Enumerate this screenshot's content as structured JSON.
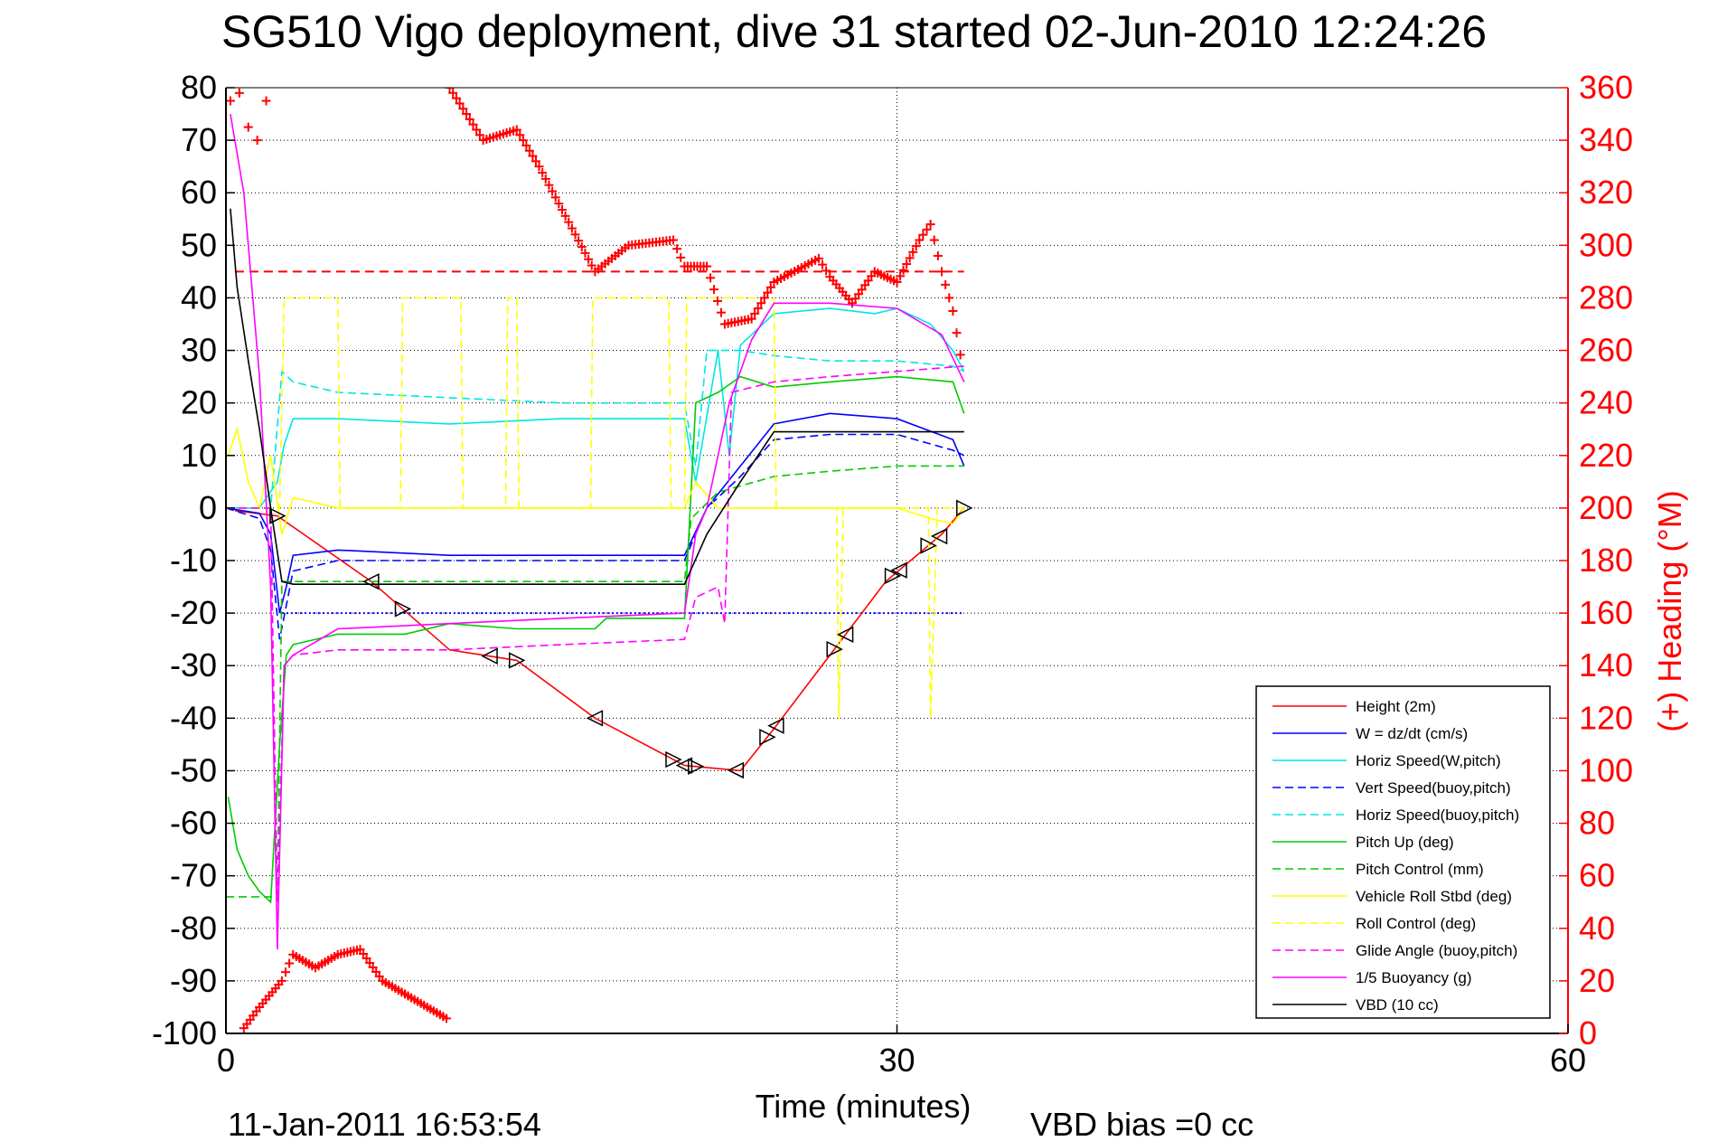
{
  "chart_data": {
    "type": "line",
    "title": "SG510 Vigo deployment, dive 31 started 02-Jun-2010 12:24:26",
    "xlabel": "Time (minutes)",
    "ylabel_right": "(+) Heading (°M)",
    "timestamp": "11-Jan-2011 16:53:54",
    "vbd_bias": "VBD bias =0 cc",
    "xlim": [
      0,
      60
    ],
    "ylim_left": [
      -100,
      80
    ],
    "ylim_right": [
      0,
      360
    ],
    "x_ticks": [
      0,
      30,
      60
    ],
    "y_ticks_left": [
      80,
      70,
      60,
      50,
      40,
      30,
      20,
      10,
      0,
      -10,
      -20,
      -30,
      -40,
      -50,
      -60,
      -70,
      -80,
      -90,
      -100
    ],
    "y_ticks_right": [
      360,
      340,
      320,
      300,
      280,
      260,
      240,
      220,
      200,
      180,
      160,
      140,
      120,
      100,
      80,
      60,
      40,
      20,
      0
    ],
    "grid": true,
    "legend_position": "bottom-right",
    "colors": {
      "red": "#ff0000",
      "blue": "#0000ff",
      "cyan": "#00e5e5",
      "green": "#00cc00",
      "yellow": "#ffff00",
      "magenta": "#ff00ff",
      "black": "#000000"
    },
    "series": [
      {
        "name": "Height (2m)",
        "color": "red",
        "dash": "solid",
        "x": [
          0.4,
          2.3,
          6.5,
          10,
          13,
          16.5,
          20.5,
          23,
          24.5,
          27,
          29.5,
          32,
          33
        ],
        "y": [
          -0.5,
          -1.5,
          -14,
          -27,
          -29,
          -40,
          -49,
          -50,
          -42,
          -28,
          -14,
          -5,
          0
        ]
      },
      {
        "name": "W = dz/dt (cm/s)",
        "color": "blue",
        "dash": "solid",
        "x": [
          0,
          1.5,
          2.0,
          2.4,
          2.7,
          3.0,
          5,
          10,
          15,
          20.5,
          21.5,
          23,
          24.5,
          27,
          30,
          32.5,
          33
        ],
        "y": [
          0,
          -1,
          -5,
          -20,
          -15,
          -9,
          -8,
          -9,
          -9,
          -9,
          0,
          8,
          16,
          18,
          17,
          13,
          8
        ]
      },
      {
        "name": "Horiz Speed(W,pitch)",
        "color": "cyan",
        "dash": "solid",
        "x": [
          0,
          1.5,
          2.3,
          2.6,
          3.0,
          5,
          10,
          15,
          20.5,
          21.0,
          22.0,
          22.5,
          23,
          24.5,
          27,
          29,
          30,
          31.5,
          32.5,
          33
        ],
        "y": [
          0,
          0,
          5,
          12,
          17,
          17,
          16,
          17,
          17,
          5,
          30,
          10,
          31,
          37,
          38,
          37,
          38,
          35,
          30,
          26
        ]
      },
      {
        "name": "Vert Speed(buoy,pitch)",
        "color": "blue",
        "dash": "dashed",
        "x": [
          0,
          1.5,
          2.0,
          2.4,
          3.0,
          5,
          10,
          15,
          20.5,
          21.5,
          23,
          24.5,
          27,
          30,
          32.5,
          33
        ],
        "y": [
          0,
          -2,
          -8,
          -25,
          -12,
          -10,
          -10,
          -10,
          -10,
          0,
          6,
          13,
          14,
          14,
          11,
          10
        ]
      },
      {
        "name": "Horiz Speed(buoy,pitch)",
        "color": "cyan",
        "dash": "dashed",
        "x": [
          0,
          2.0,
          2.5,
          3.0,
          5,
          10,
          15,
          20.5,
          21.0,
          21.5,
          23,
          24.5,
          27,
          30,
          32.5,
          33
        ],
        "y": [
          0,
          0,
          26,
          24,
          22,
          21,
          20,
          20,
          8,
          30,
          30,
          29,
          28,
          28,
          27,
          26
        ]
      },
      {
        "name": "Pitch Up (deg)",
        "color": "green",
        "dash": "solid",
        "x": [
          0.1,
          0.5,
          1.0,
          1.5,
          2.0,
          2.4,
          2.7,
          3.0,
          5,
          8,
          10,
          13,
          16.5,
          17,
          20.5,
          21.0,
          22,
          23,
          24.5,
          27,
          30,
          32.5,
          33
        ],
        "y": [
          -55,
          -65,
          -70,
          -73,
          -75,
          -45,
          -28,
          -26,
          -24,
          -24,
          -22,
          -23,
          -23,
          -21,
          -21,
          20,
          22,
          25,
          23,
          24,
          25,
          24,
          18
        ]
      },
      {
        "name": "Pitch Control (mm)",
        "color": "green",
        "dash": "dashed",
        "x": [
          0,
          2.3,
          2.5,
          20.5,
          20.8,
          22,
          24.5,
          27,
          30,
          33
        ],
        "y": [
          -74,
          -74,
          -14,
          -14,
          -2,
          3,
          6,
          7,
          8,
          8
        ]
      },
      {
        "name": "Vehicle Roll Stbd (deg)",
        "color": "yellow",
        "dash": "solid",
        "x": [
          0.1,
          0.5,
          1.0,
          1.5,
          2.0,
          2.5,
          3.0,
          5,
          10,
          15,
          20.5,
          21.0,
          22,
          24.5,
          27,
          30,
          31.5,
          32.5,
          33
        ],
        "y": [
          10,
          15,
          5,
          0,
          10,
          -5,
          2,
          0,
          0,
          0,
          0,
          5,
          0,
          0,
          0,
          0,
          -2,
          -3,
          0
        ]
      },
      {
        "name": "Roll Control (deg)",
        "color": "yellow",
        "dash": "dashed",
        "x": [
          0,
          2.4,
          2.6,
          5,
          5.1,
          7.8,
          7.9,
          10.5,
          10.6,
          12.5,
          12.6,
          13.0,
          13.1,
          16.3,
          16.4,
          19.8,
          19.9,
          20.5,
          20.6,
          24.5,
          24.6,
          27.3,
          27.4,
          27.6,
          28,
          31.4,
          31.5,
          31.8,
          32.0,
          33
        ],
        "y": [
          0,
          0,
          40,
          40,
          0,
          0,
          40,
          40,
          0,
          0,
          40,
          40,
          0,
          0,
          40,
          40,
          0,
          0,
          40,
          40,
          0,
          0,
          -40,
          0,
          0,
          0,
          -40,
          0,
          0,
          0
        ]
      },
      {
        "name": "Glide Angle (buoy,pitch)",
        "color": "magenta",
        "dash": "dashed",
        "x": [
          0,
          2.0,
          2.3,
          2.6,
          3.0,
          5,
          10,
          15,
          20.5,
          21.0,
          22.0,
          22.3,
          22.6,
          24.5,
          27,
          30,
          33
        ],
        "y": [
          0,
          0,
          -75,
          -30,
          -28,
          -27,
          -27,
          -26,
          -25,
          -17,
          -15,
          -22,
          22,
          24,
          25,
          26,
          27
        ]
      },
      {
        "name": "1/5 Buoyancy (g)",
        "color": "magenta",
        "dash": "solid",
        "x": [
          0.2,
          0.8,
          1.5,
          2.0,
          2.3,
          2.6,
          3.0,
          5,
          10,
          15,
          20.5,
          21.0,
          21.5,
          22.5,
          23.5,
          24.5,
          27,
          30,
          32,
          33
        ],
        "y": [
          75,
          60,
          25,
          -15,
          -84,
          -30,
          -28,
          -23,
          -22,
          -21,
          -20,
          -5,
          0,
          20,
          32,
          39,
          39,
          38,
          33,
          24
        ]
      },
      {
        "name": "VBD (10 cc)",
        "color": "black",
        "dash": "solid",
        "x": [
          0.2,
          0.5,
          1.0,
          1.5,
          2.0,
          2.5,
          3.0,
          5,
          10,
          15,
          20.5,
          21.5,
          23,
          24.5,
          27,
          30,
          33
        ],
        "y": [
          57,
          42,
          28,
          15,
          0,
          -14,
          -14.5,
          -14.5,
          -14.5,
          -14.5,
          -14.5,
          -5,
          5,
          14.5,
          14.5,
          14.5,
          14.5
        ]
      }
    ],
    "heading_series": {
      "axis": "right",
      "marker": "+",
      "color": "red",
      "x": [
        0.2,
        0.6,
        1.0,
        1.4,
        1.8,
        10,
        11.5,
        13,
        14,
        16.5,
        18,
        20,
        20.5,
        21.5,
        22.3,
        23.5,
        24.5,
        26.5,
        27,
        28,
        29,
        30,
        31,
        31.5,
        32,
        32.5,
        33
      ],
      "y": [
        355,
        358,
        345,
        340,
        355,
        360,
        340,
        344,
        330,
        290,
        300,
        302,
        292,
        292,
        270,
        272,
        286,
        295,
        288,
        278,
        290,
        286,
        302,
        308,
        290,
        275,
        250
      ],
      "wrapped": {
        "x": [
          0.8,
          1.5,
          2.5,
          3.0,
          4.0,
          5.0,
          6.0,
          7.0,
          8.0,
          9.0,
          10.0
        ],
        "y": [
          2,
          10,
          20,
          30,
          25,
          30,
          32,
          20,
          15,
          10,
          5
        ]
      },
      "mean_heading": 290
    },
    "triangle_markers": {
      "series": "Height (2m)",
      "x": [
        2.3,
        6.5,
        7.9,
        11.8,
        13.0,
        16.5,
        20.0,
        20.5,
        21.0,
        22.8,
        24.2,
        24.6,
        27.2,
        27.7,
        29.8,
        30.1,
        31.4,
        31.9,
        33.0
      ]
    }
  }
}
